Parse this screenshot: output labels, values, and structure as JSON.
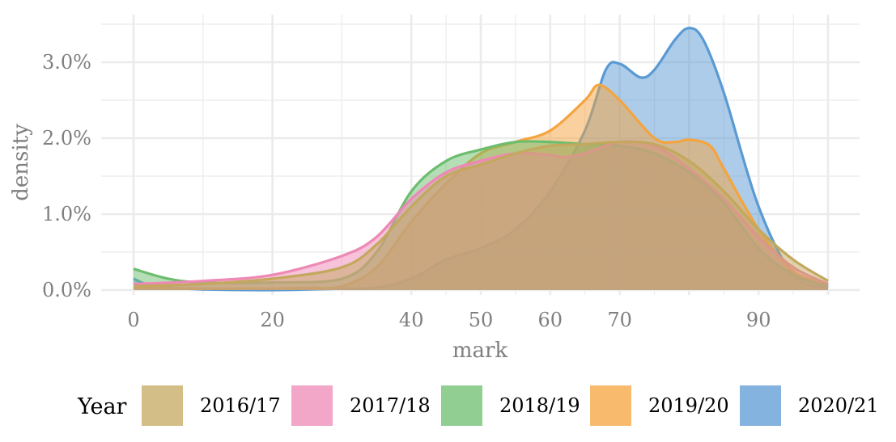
{
  "chart_data": {
    "type": "area",
    "xlabel": "mark",
    "ylabel": "density",
    "xlim": [
      -5,
      100
    ],
    "ylim": [
      -0.001,
      0.035
    ],
    "x_ticks": [
      0,
      20,
      40,
      50,
      60,
      70,
      90
    ],
    "x_tick_labels": [
      "0",
      "20",
      "40",
      "50",
      "60",
      "70",
      "90"
    ],
    "y_ticks": [
      0,
      0.01,
      0.02,
      0.03
    ],
    "y_tick_labels": [
      "0.0%",
      "1.0%",
      "2.0%",
      "3.0%"
    ],
    "grid": true,
    "legend": {
      "title": "Year",
      "position": "bottom"
    },
    "series": [
      {
        "name": "2016/17",
        "color": "#c3a85e",
        "points": [
          [
            0,
            0.0005
          ],
          [
            10,
            0.0008
          ],
          [
            20,
            0.0015
          ],
          [
            30,
            0.003
          ],
          [
            35,
            0.006
          ],
          [
            40,
            0.011
          ],
          [
            45,
            0.015
          ],
          [
            50,
            0.0165
          ],
          [
            55,
            0.018
          ],
          [
            60,
            0.019
          ],
          [
            65,
            0.0192
          ],
          [
            70,
            0.0195
          ],
          [
            75,
            0.0192
          ],
          [
            80,
            0.017
          ],
          [
            85,
            0.013
          ],
          [
            90,
            0.008
          ],
          [
            95,
            0.004
          ],
          [
            100,
            0.0012
          ]
        ]
      },
      {
        "name": "2017/18",
        "color": "#ee88b5",
        "points": [
          [
            0,
            0.0008
          ],
          [
            10,
            0.0012
          ],
          [
            20,
            0.002
          ],
          [
            30,
            0.0045
          ],
          [
            35,
            0.007
          ],
          [
            40,
            0.012
          ],
          [
            45,
            0.0155
          ],
          [
            50,
            0.017
          ],
          [
            55,
            0.018
          ],
          [
            60,
            0.0178
          ],
          [
            62,
            0.0175
          ],
          [
            65,
            0.018
          ],
          [
            70,
            0.0195
          ],
          [
            75,
            0.019
          ],
          [
            80,
            0.016
          ],
          [
            85,
            0.012
          ],
          [
            90,
            0.007
          ],
          [
            95,
            0.003
          ],
          [
            100,
            0.0008
          ]
        ]
      },
      {
        "name": "2018/19",
        "color": "#6cbd6e",
        "points": [
          [
            0,
            0.0028
          ],
          [
            5,
            0.0015
          ],
          [
            10,
            0.001
          ],
          [
            20,
            0.001
          ],
          [
            30,
            0.0015
          ],
          [
            35,
            0.005
          ],
          [
            40,
            0.013
          ],
          [
            45,
            0.017
          ],
          [
            50,
            0.0185
          ],
          [
            55,
            0.0195
          ],
          [
            60,
            0.0195
          ],
          [
            65,
            0.0192
          ],
          [
            70,
            0.019
          ],
          [
            75,
            0.018
          ],
          [
            80,
            0.0155
          ],
          [
            85,
            0.0115
          ],
          [
            90,
            0.0055
          ],
          [
            95,
            0.002
          ],
          [
            100,
            0.0005
          ]
        ]
      },
      {
        "name": "2019/20",
        "color": "#f5a43d",
        "points": [
          [
            0,
            0.0003
          ],
          [
            10,
            0.0002
          ],
          [
            20,
            0.0002
          ],
          [
            25,
            0.0003
          ],
          [
            30,
            0.0005
          ],
          [
            35,
            0.003
          ],
          [
            40,
            0.009
          ],
          [
            45,
            0.014
          ],
          [
            50,
            0.018
          ],
          [
            55,
            0.0195
          ],
          [
            60,
            0.021
          ],
          [
            65,
            0.025
          ],
          [
            67,
            0.027
          ],
          [
            70,
            0.025
          ],
          [
            75,
            0.02
          ],
          [
            78,
            0.0195
          ],
          [
            80,
            0.0198
          ],
          [
            83,
            0.019
          ],
          [
            85,
            0.016
          ],
          [
            90,
            0.008
          ],
          [
            95,
            0.0025
          ],
          [
            100,
            0.0008
          ]
        ]
      },
      {
        "name": "2020/21",
        "color": "#5a9ad3",
        "points": [
          [
            0,
            0.0015
          ],
          [
            3,
            0.0005
          ],
          [
            10,
            0.0001
          ],
          [
            20,
            0.0
          ],
          [
            30,
            0.0002
          ],
          [
            35,
            0.0003
          ],
          [
            40,
            0.0015
          ],
          [
            45,
            0.004
          ],
          [
            50,
            0.0055
          ],
          [
            55,
            0.008
          ],
          [
            60,
            0.013
          ],
          [
            65,
            0.021
          ],
          [
            68,
            0.029
          ],
          [
            70,
            0.0298
          ],
          [
            73,
            0.028
          ],
          [
            75,
            0.029
          ],
          [
            78,
            0.033
          ],
          [
            80,
            0.0345
          ],
          [
            82,
            0.033
          ],
          [
            85,
            0.026
          ],
          [
            90,
            0.011
          ],
          [
            95,
            0.002
          ],
          [
            100,
            0.0003
          ]
        ]
      }
    ]
  }
}
